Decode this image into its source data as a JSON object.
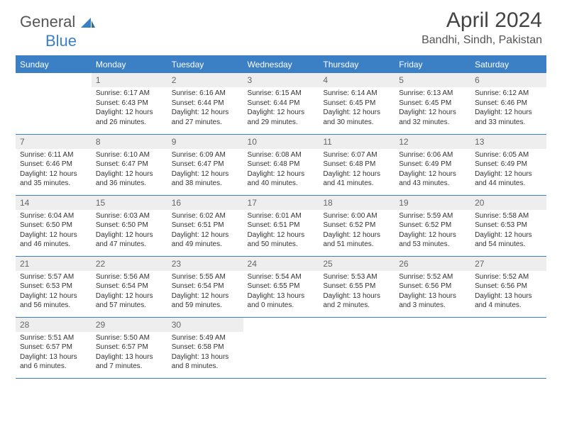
{
  "brand": {
    "part1": "General",
    "part2": "Blue"
  },
  "title": "April 2024",
  "location": "Bandhi, Sindh, Pakistan",
  "colors": {
    "header_bg": "#3b7fc4",
    "header_text": "#ffffff",
    "daynum_bg": "#eeeeee",
    "daynum_text": "#666666",
    "body_text": "#333333",
    "rule": "#3b7fc4"
  },
  "weekdays": [
    "Sunday",
    "Monday",
    "Tuesday",
    "Wednesday",
    "Thursday",
    "Friday",
    "Saturday"
  ],
  "weeks": [
    [
      null,
      {
        "n": "1",
        "sr": "Sunrise: 6:17 AM",
        "ss": "Sunset: 6:43 PM",
        "d1": "Daylight: 12 hours",
        "d2": "and 26 minutes."
      },
      {
        "n": "2",
        "sr": "Sunrise: 6:16 AM",
        "ss": "Sunset: 6:44 PM",
        "d1": "Daylight: 12 hours",
        "d2": "and 27 minutes."
      },
      {
        "n": "3",
        "sr": "Sunrise: 6:15 AM",
        "ss": "Sunset: 6:44 PM",
        "d1": "Daylight: 12 hours",
        "d2": "and 29 minutes."
      },
      {
        "n": "4",
        "sr": "Sunrise: 6:14 AM",
        "ss": "Sunset: 6:45 PM",
        "d1": "Daylight: 12 hours",
        "d2": "and 30 minutes."
      },
      {
        "n": "5",
        "sr": "Sunrise: 6:13 AM",
        "ss": "Sunset: 6:45 PM",
        "d1": "Daylight: 12 hours",
        "d2": "and 32 minutes."
      },
      {
        "n": "6",
        "sr": "Sunrise: 6:12 AM",
        "ss": "Sunset: 6:46 PM",
        "d1": "Daylight: 12 hours",
        "d2": "and 33 minutes."
      }
    ],
    [
      {
        "n": "7",
        "sr": "Sunrise: 6:11 AM",
        "ss": "Sunset: 6:46 PM",
        "d1": "Daylight: 12 hours",
        "d2": "and 35 minutes."
      },
      {
        "n": "8",
        "sr": "Sunrise: 6:10 AM",
        "ss": "Sunset: 6:47 PM",
        "d1": "Daylight: 12 hours",
        "d2": "and 36 minutes."
      },
      {
        "n": "9",
        "sr": "Sunrise: 6:09 AM",
        "ss": "Sunset: 6:47 PM",
        "d1": "Daylight: 12 hours",
        "d2": "and 38 minutes."
      },
      {
        "n": "10",
        "sr": "Sunrise: 6:08 AM",
        "ss": "Sunset: 6:48 PM",
        "d1": "Daylight: 12 hours",
        "d2": "and 40 minutes."
      },
      {
        "n": "11",
        "sr": "Sunrise: 6:07 AM",
        "ss": "Sunset: 6:48 PM",
        "d1": "Daylight: 12 hours",
        "d2": "and 41 minutes."
      },
      {
        "n": "12",
        "sr": "Sunrise: 6:06 AM",
        "ss": "Sunset: 6:49 PM",
        "d1": "Daylight: 12 hours",
        "d2": "and 43 minutes."
      },
      {
        "n": "13",
        "sr": "Sunrise: 6:05 AM",
        "ss": "Sunset: 6:49 PM",
        "d1": "Daylight: 12 hours",
        "d2": "and 44 minutes."
      }
    ],
    [
      {
        "n": "14",
        "sr": "Sunrise: 6:04 AM",
        "ss": "Sunset: 6:50 PM",
        "d1": "Daylight: 12 hours",
        "d2": "and 46 minutes."
      },
      {
        "n": "15",
        "sr": "Sunrise: 6:03 AM",
        "ss": "Sunset: 6:50 PM",
        "d1": "Daylight: 12 hours",
        "d2": "and 47 minutes."
      },
      {
        "n": "16",
        "sr": "Sunrise: 6:02 AM",
        "ss": "Sunset: 6:51 PM",
        "d1": "Daylight: 12 hours",
        "d2": "and 49 minutes."
      },
      {
        "n": "17",
        "sr": "Sunrise: 6:01 AM",
        "ss": "Sunset: 6:51 PM",
        "d1": "Daylight: 12 hours",
        "d2": "and 50 minutes."
      },
      {
        "n": "18",
        "sr": "Sunrise: 6:00 AM",
        "ss": "Sunset: 6:52 PM",
        "d1": "Daylight: 12 hours",
        "d2": "and 51 minutes."
      },
      {
        "n": "19",
        "sr": "Sunrise: 5:59 AM",
        "ss": "Sunset: 6:52 PM",
        "d1": "Daylight: 12 hours",
        "d2": "and 53 minutes."
      },
      {
        "n": "20",
        "sr": "Sunrise: 5:58 AM",
        "ss": "Sunset: 6:53 PM",
        "d1": "Daylight: 12 hours",
        "d2": "and 54 minutes."
      }
    ],
    [
      {
        "n": "21",
        "sr": "Sunrise: 5:57 AM",
        "ss": "Sunset: 6:53 PM",
        "d1": "Daylight: 12 hours",
        "d2": "and 56 minutes."
      },
      {
        "n": "22",
        "sr": "Sunrise: 5:56 AM",
        "ss": "Sunset: 6:54 PM",
        "d1": "Daylight: 12 hours",
        "d2": "and 57 minutes."
      },
      {
        "n": "23",
        "sr": "Sunrise: 5:55 AM",
        "ss": "Sunset: 6:54 PM",
        "d1": "Daylight: 12 hours",
        "d2": "and 59 minutes."
      },
      {
        "n": "24",
        "sr": "Sunrise: 5:54 AM",
        "ss": "Sunset: 6:55 PM",
        "d1": "Daylight: 13 hours",
        "d2": "and 0 minutes."
      },
      {
        "n": "25",
        "sr": "Sunrise: 5:53 AM",
        "ss": "Sunset: 6:55 PM",
        "d1": "Daylight: 13 hours",
        "d2": "and 2 minutes."
      },
      {
        "n": "26",
        "sr": "Sunrise: 5:52 AM",
        "ss": "Sunset: 6:56 PM",
        "d1": "Daylight: 13 hours",
        "d2": "and 3 minutes."
      },
      {
        "n": "27",
        "sr": "Sunrise: 5:52 AM",
        "ss": "Sunset: 6:56 PM",
        "d1": "Daylight: 13 hours",
        "d2": "and 4 minutes."
      }
    ],
    [
      {
        "n": "28",
        "sr": "Sunrise: 5:51 AM",
        "ss": "Sunset: 6:57 PM",
        "d1": "Daylight: 13 hours",
        "d2": "and 6 minutes."
      },
      {
        "n": "29",
        "sr": "Sunrise: 5:50 AM",
        "ss": "Sunset: 6:57 PM",
        "d1": "Daylight: 13 hours",
        "d2": "and 7 minutes."
      },
      {
        "n": "30",
        "sr": "Sunrise: 5:49 AM",
        "ss": "Sunset: 6:58 PM",
        "d1": "Daylight: 13 hours",
        "d2": "and 8 minutes."
      },
      null,
      null,
      null,
      null
    ]
  ]
}
